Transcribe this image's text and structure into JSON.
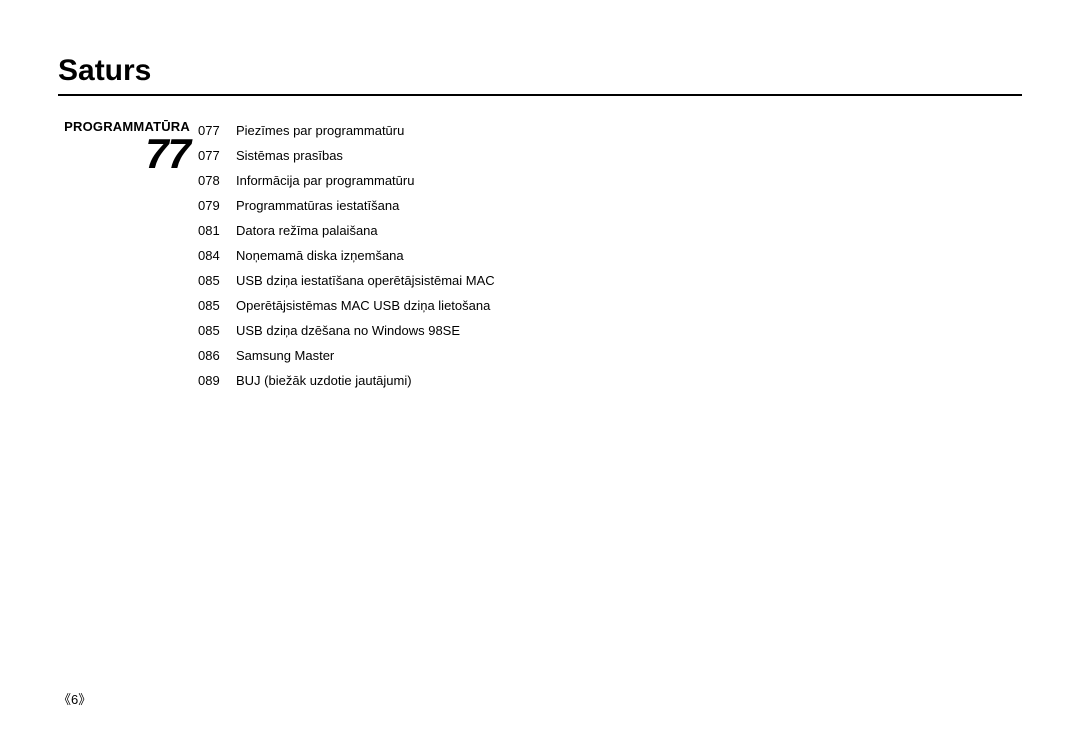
{
  "title": "Saturs",
  "section": {
    "label": "PROGRAMMATŪRA",
    "big_number": "77"
  },
  "toc": [
    {
      "page": "077",
      "text": "Piezīmes par programmatūru"
    },
    {
      "page": "077",
      "text": "Sistēmas prasības"
    },
    {
      "page": "078",
      "text": "Informācija par programmatūru"
    },
    {
      "page": "079",
      "text": "Programmatūras iestatīšana"
    },
    {
      "page": "081",
      "text": "Datora režīma palaišana"
    },
    {
      "page": "084",
      "text": "Noņemamā diska izņemšana"
    },
    {
      "page": "085",
      "text": "USB dziņa iestatīšana operētājsistēmai MAC"
    },
    {
      "page": "085",
      "text": "Operētājsistēmas MAC USB dziņa lietošana"
    },
    {
      "page": "085",
      "text": "USB dziņa dzēšana no Windows 98SE"
    },
    {
      "page": "086",
      "text": "Samsung Master"
    },
    {
      "page": "089",
      "text": "BUJ (biežāk uzdotie jautājumi)"
    }
  ],
  "footer": "《6》"
}
